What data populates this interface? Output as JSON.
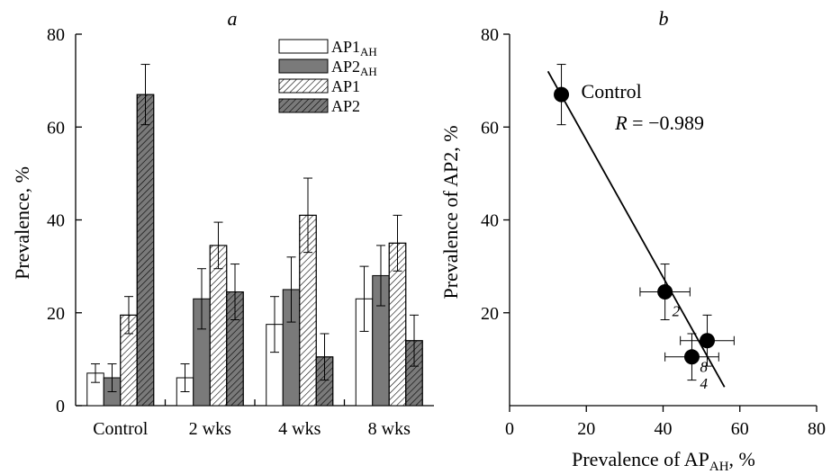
{
  "chart_data": [
    {
      "type": "bar",
      "panel_label": "a",
      "categories": [
        "Control",
        "2 wks",
        "4 wks",
        "8 wks"
      ],
      "ylabel": "Prevalence, %",
      "ylim": [
        0,
        80
      ],
      "yticks": [
        "0",
        "20",
        "40",
        "60",
        "80"
      ],
      "legend_placement": "top-right",
      "series": [
        {
          "name_main": "AP1",
          "name_sub": "AH",
          "fill": "#ffffff",
          "hatch": false,
          "values": [
            7,
            6,
            17.5,
            23
          ],
          "errors": [
            2,
            3,
            6,
            7
          ]
        },
        {
          "name_main": "AP2",
          "name_sub": "AH",
          "fill": "#7a7a7a",
          "hatch": false,
          "values": [
            6,
            23,
            25,
            28
          ],
          "errors": [
            3,
            6.5,
            7,
            6.5
          ]
        },
        {
          "name_main": "AP1",
          "name_sub": "",
          "fill": "#ffffff",
          "hatch": true,
          "values": [
            19.5,
            34.5,
            41,
            35
          ],
          "errors": [
            4,
            5,
            8,
            6
          ]
        },
        {
          "name_main": "AP2",
          "name_sub": "",
          "fill": "#7a7a7a",
          "hatch": true,
          "values": [
            67,
            24.5,
            10.5,
            14
          ],
          "errors": [
            6.5,
            6,
            5,
            5.5
          ]
        }
      ]
    },
    {
      "type": "scatter",
      "panel_label": "b",
      "xlabel_main": "Prevalence of AP",
      "xlabel_sub": "AH",
      "xlabel_unit": ", %",
      "ylabel": "Prevalence of AP2, %",
      "xlim": [
        0,
        80
      ],
      "ylim": [
        0,
        80
      ],
      "xticks": [
        "0",
        "20",
        "40",
        "60",
        "80"
      ],
      "yticks": [
        "20",
        "40",
        "60",
        "80"
      ],
      "points": [
        {
          "x": 13.5,
          "y": 67,
          "xerr": 1.5,
          "yerr": 6.5,
          "label": "Control"
        },
        {
          "x": 40.5,
          "y": 24.5,
          "xerr": 6.5,
          "yerr": 6,
          "label": "2"
        },
        {
          "x": 47.5,
          "y": 10.5,
          "xerr": 7,
          "yerr": 5,
          "label": "4"
        },
        {
          "x": 51.5,
          "y": 14,
          "xerr": 7,
          "yerr": 5.5,
          "label": "8"
        }
      ],
      "fit_line": {
        "x": [
          10,
          56
        ],
        "y": [
          72,
          4
        ]
      },
      "annotation": {
        "r_label": "R",
        "r_value": " = −0.989"
      }
    }
  ]
}
